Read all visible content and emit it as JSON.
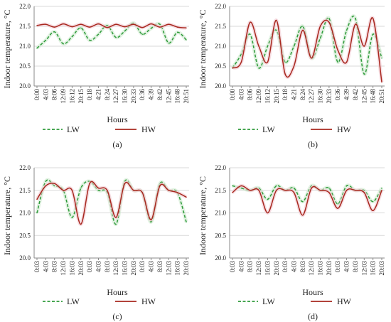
{
  "legend_labels": {
    "lw": "LW",
    "hw": "HW"
  },
  "colors": {
    "lw": "#2e9b3a",
    "hw": "#a8281f",
    "lw_glow": "#cfe9cf",
    "hw_glow": "#f2c9d2",
    "axis": "#8a8a8a",
    "grid": "#d9d9d9"
  },
  "chart_data": [
    {
      "type": "line",
      "panel_label": "(a)",
      "xlabel": "Hours",
      "ylabel": "Indoor temperature, °C",
      "ylim": [
        20.0,
        22.0
      ],
      "yticks": [
        "20.0",
        "20.5",
        "21.0",
        "21.5",
        "22.0"
      ],
      "grid": true,
      "legend": "bottom",
      "x": [
        "0:00",
        "4:03",
        "8:06",
        "12:09",
        "16:12",
        "20:15",
        "0:18",
        "4:21",
        "8:24",
        "12:27",
        "16:30",
        "20:33",
        "0:36",
        "4:39",
        "8:42",
        "12:45",
        "16:48",
        "20:51"
      ],
      "series": [
        {
          "name": "LW",
          "style": "dashed",
          "values": [
            20.95,
            21.15,
            21.36,
            21.06,
            21.24,
            21.46,
            21.15,
            21.3,
            21.52,
            21.22,
            21.38,
            21.58,
            21.3,
            21.45,
            21.55,
            21.08,
            21.35,
            21.16
          ]
        },
        {
          "name": "HW",
          "style": "solid",
          "values": [
            21.52,
            21.55,
            21.48,
            21.56,
            21.49,
            21.55,
            21.48,
            21.56,
            21.47,
            21.55,
            21.49,
            21.55,
            21.47,
            21.56,
            21.48,
            21.55,
            21.48,
            21.46
          ]
        }
      ]
    },
    {
      "type": "line",
      "panel_label": "(b)",
      "xlabel": "Hours",
      "ylabel": "Indoor temperature, °C",
      "ylim": [
        20.0,
        22.0
      ],
      "yticks": [
        "20.0",
        "20.5",
        "21.0",
        "21.5",
        "22.0"
      ],
      "grid": true,
      "legend": "bottom",
      "x": [
        "0:00",
        "4:03",
        "8:06",
        "12:09",
        "16:12",
        "20:15",
        "0:18",
        "4:21",
        "8:24",
        "12:27",
        "16:30",
        "20:33",
        "0:36",
        "4:39",
        "8:42",
        "12:45",
        "16:48",
        "20:51"
      ],
      "series": [
        {
          "name": "LW",
          "style": "dashed",
          "values": [
            20.45,
            20.8,
            21.3,
            20.45,
            21.0,
            21.4,
            20.6,
            21.0,
            21.5,
            20.7,
            21.2,
            21.7,
            20.6,
            21.4,
            21.7,
            20.3,
            21.3,
            20.7
          ]
        },
        {
          "name": "HW",
          "style": "solid",
          "values": [
            20.45,
            20.6,
            21.6,
            21.0,
            20.6,
            21.65,
            20.3,
            20.5,
            21.4,
            20.7,
            21.5,
            21.6,
            20.9,
            20.6,
            21.55,
            21.0,
            21.7,
            20.1
          ]
        }
      ]
    },
    {
      "type": "line",
      "panel_label": "(c)",
      "xlabel": "Hours",
      "ylabel": "Indoor temperature, °C",
      "ylim": [
        20.0,
        22.0
      ],
      "yticks": [
        "20.0",
        "20.5",
        "21.0",
        "21.5",
        "22.0"
      ],
      "grid": true,
      "legend": "bottom",
      "x": [
        "0:03",
        "4:03",
        "8:03",
        "12:03",
        "16:03",
        "20:03",
        "0:03",
        "4:03",
        "8:03",
        "12:03",
        "16:03",
        "20:03",
        "0:03",
        "4:03",
        "8:03",
        "12:03",
        "16:03",
        "20:03"
      ],
      "series": [
        {
          "name": "LW",
          "style": "dashed",
          "values": [
            21.0,
            21.7,
            21.6,
            21.5,
            20.9,
            21.55,
            21.7,
            21.5,
            21.45,
            20.75,
            21.7,
            21.5,
            21.45,
            20.8,
            21.65,
            21.5,
            21.45,
            20.8
          ]
        },
        {
          "name": "HW",
          "style": "solid",
          "values": [
            21.3,
            21.6,
            21.65,
            21.5,
            21.5,
            20.75,
            21.65,
            21.55,
            21.5,
            20.9,
            21.65,
            21.5,
            21.45,
            20.85,
            21.6,
            21.5,
            21.45,
            21.35
          ]
        }
      ]
    },
    {
      "type": "line",
      "panel_label": "(d)",
      "xlabel": "Hours",
      "ylabel": "Indoor temperature, °C",
      "ylim": [
        20.0,
        22.0
      ],
      "yticks": [
        "20.0",
        "20.5",
        "21.0",
        "21.5",
        "22.0"
      ],
      "grid": true,
      "legend": "bottom",
      "x": [
        "0:03",
        "4:03",
        "8:03",
        "12:03",
        "16:03",
        "20:03",
        "0:03",
        "4:03",
        "8:03",
        "12:03",
        "16:03",
        "20:03",
        "0:03",
        "4:03",
        "8:03",
        "12:03",
        "16:03",
        "20:03"
      ],
      "series": [
        {
          "name": "LW",
          "style": "dashed",
          "values": [
            21.6,
            21.55,
            21.5,
            21.55,
            21.3,
            21.6,
            21.5,
            21.55,
            21.25,
            21.6,
            21.5,
            21.55,
            21.2,
            21.6,
            21.5,
            21.5,
            21.25,
            21.55
          ]
        },
        {
          "name": "HW",
          "style": "solid",
          "values": [
            21.45,
            21.6,
            21.5,
            21.5,
            21.0,
            21.5,
            21.5,
            21.45,
            20.95,
            21.55,
            21.5,
            21.45,
            21.1,
            21.5,
            21.5,
            21.45,
            21.05,
            21.5
          ]
        }
      ]
    }
  ]
}
